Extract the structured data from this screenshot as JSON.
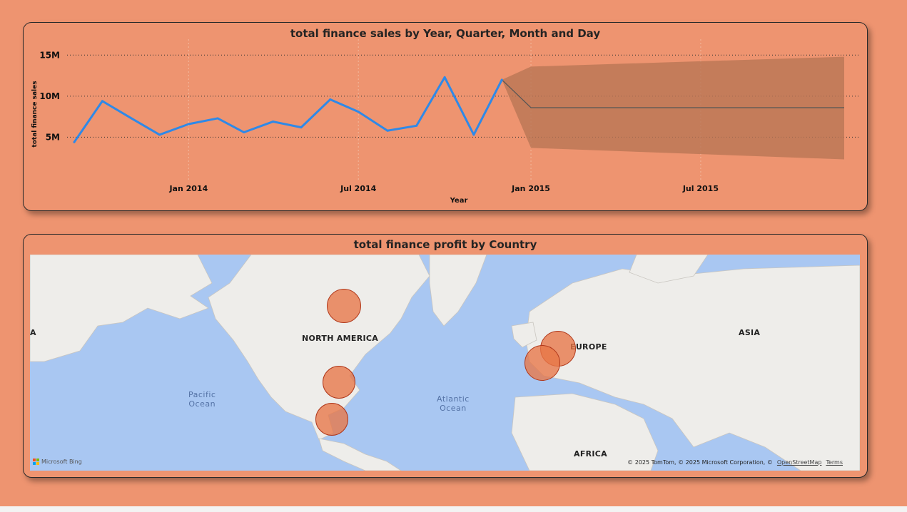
{
  "line_chart": {
    "title": "total finance sales by Year, Quarter, Month and Day"
  },
  "map_chart": {
    "title": "total finance profit by Country",
    "labels": {
      "north_america": "NORTH AMERICA",
      "europe": "EUROPE",
      "asia": "ASIA",
      "africa": "AFRICA",
      "edge": "A",
      "pacific": "Pacific\nOcean",
      "atlantic": "Atlantic\nOcean"
    },
    "brand": "Microsoft Bing",
    "attribution": "© 2025 TomTom, © 2025 Microsoft Corporation, ©",
    "osm_link": "OpenStreetMap",
    "terms_link": "Terms",
    "bubble_color": "#e87646"
  },
  "chart_data": [
    {
      "type": "line",
      "title": "total finance sales by Year, Quarter, Month and Day",
      "xlabel": "Year",
      "ylabel": "total finance sales",
      "x_ticks": [
        "Jan 2014",
        "Jul 2014",
        "Jan 2015",
        "Jul 2015"
      ],
      "y_ticks": [
        "5M",
        "10M",
        "15M"
      ],
      "ylim": [
        0,
        16.5
      ],
      "xlim": [
        "2013-09-01",
        "2015-12-01"
      ],
      "grid": true,
      "series": [
        {
          "values_unit": "M",
          "x": [
            "2013-09-01",
            "2013-10-01",
            "2013-11-01",
            "2013-12-01",
            "2014-01-01",
            "2014-02-01",
            "2014-03-01",
            "2014-04-01",
            "2014-05-01",
            "2014-06-01",
            "2014-07-01",
            "2014-08-01",
            "2014-09-01",
            "2014-10-01",
            "2014-11-01",
            "2014-12-01"
          ],
          "values": [
            4.4,
            9.4,
            7.3,
            5.3,
            6.6,
            7.3,
            5.6,
            6.9,
            6.2,
            9.6,
            8.1,
            5.8,
            6.4,
            12.3,
            5.3,
            12.0
          ],
          "color": "#2e89e8"
        },
        {
          "type": "forecast",
          "values_unit": "M",
          "x": [
            "2014-12-01",
            "2015-01-01",
            "2015-12-01"
          ],
          "values": [
            12.0,
            8.6,
            8.6
          ],
          "upper": [
            12.0,
            13.6,
            14.8
          ],
          "lower": [
            12.0,
            3.7,
            2.3
          ],
          "color": "#555555"
        }
      ]
    },
    {
      "type": "map-bubble",
      "title": "total finance profit by Country",
      "note": "bubble map; bubbles appear equal in size"
    }
  ]
}
